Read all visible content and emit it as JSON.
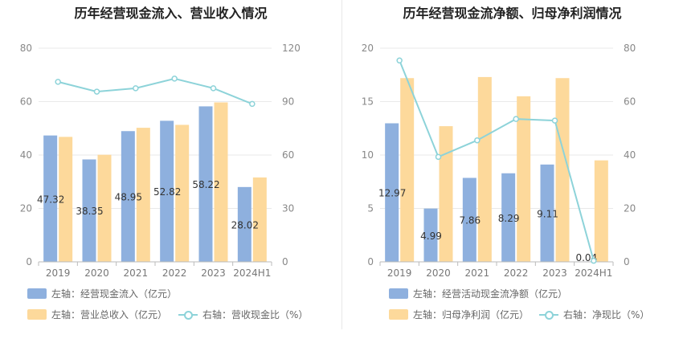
{
  "colors": {
    "bar1": "#8eb0de",
    "bar2": "#fdd99b",
    "line": "#8dd3d9"
  },
  "chart_data": [
    {
      "type": "bar",
      "title": "历年经营现金流入、营业收入情况",
      "categories": [
        "2019",
        "2020",
        "2021",
        "2022",
        "2023",
        "2024H1"
      ],
      "left_axis": {
        "min": 0,
        "max": 80,
        "ticks": [
          "0",
          "20",
          "40",
          "60",
          "80"
        ]
      },
      "right_axis": {
        "min": 0,
        "max": 120,
        "ticks": [
          "0",
          "30",
          "60",
          "90",
          "120"
        ]
      },
      "series": [
        {
          "name": "左轴：经营现金流入（亿元）",
          "axis": "left",
          "kind": "bar",
          "values": [
            47.32,
            38.35,
            48.95,
            52.82,
            58.22,
            28.02
          ],
          "labels": [
            "47.32",
            "38.35",
            "48.95",
            "52.82",
            "58.22",
            "28.02"
          ]
        },
        {
          "name": "左轴：营业总收入（亿元）",
          "axis": "left",
          "kind": "bar",
          "values": [
            46.8,
            40.1,
            50.2,
            51.3,
            59.7,
            31.6
          ]
        },
        {
          "name": "右轴：营收现金比（%）",
          "axis": "right",
          "kind": "line",
          "values": [
            101.1,
            95.6,
            97.5,
            102.9,
            97.5,
            88.7
          ]
        }
      ]
    },
    {
      "type": "bar",
      "title": "历年经营现金流净额、归母净利润情况",
      "categories": [
        "2019",
        "2020",
        "2021",
        "2022",
        "2023",
        "2024H1"
      ],
      "left_axis": {
        "min": 0,
        "max": 20,
        "ticks": [
          "0",
          "5",
          "10",
          "15",
          "20"
        ]
      },
      "right_axis": {
        "min": 0,
        "max": 80,
        "ticks": [
          "0",
          "20",
          "40",
          "60",
          "80"
        ]
      },
      "series": [
        {
          "name": "左轴：经营活动现金流净额（亿元）",
          "axis": "left",
          "kind": "bar",
          "values": [
            12.97,
            4.99,
            7.86,
            8.29,
            9.11,
            0.04
          ],
          "labels": [
            "12.97",
            "4.99",
            "7.86",
            "8.29",
            "9.11",
            "0.04"
          ]
        },
        {
          "name": "左轴：归母净利润（亿元）",
          "axis": "left",
          "kind": "bar",
          "values": [
            17.2,
            12.7,
            17.3,
            15.5,
            17.2,
            9.5
          ]
        },
        {
          "name": "右轴：净现比（%）",
          "axis": "right",
          "kind": "line",
          "values": [
            75.4,
            39.3,
            45.5,
            53.5,
            52.9,
            0.4
          ]
        }
      ]
    }
  ]
}
